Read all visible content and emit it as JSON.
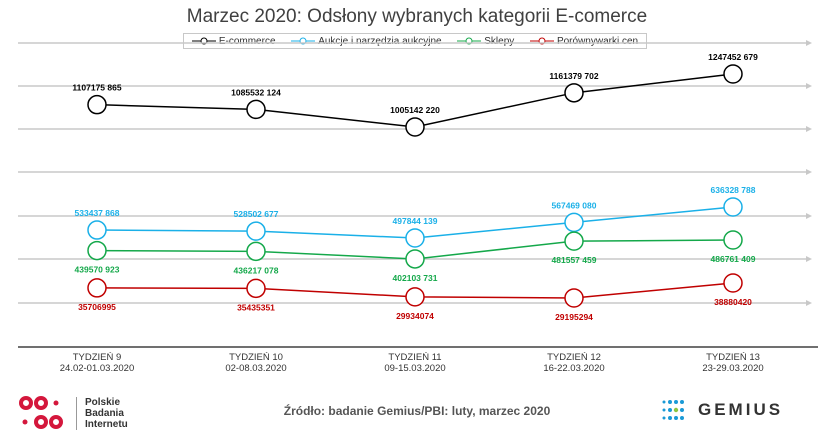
{
  "chart_data": {
    "type": "line",
    "title": "Marzec 2020: Odsłony wybranych kategorii E-comerce",
    "categories": [
      {
        "week": "TYDZIEŃ  9",
        "dates": "24.02-01.03.2020"
      },
      {
        "week": "TYDZIEŃ  10",
        "dates": "02-08.03.2020"
      },
      {
        "week": "TYDZIEŃ  11",
        "dates": "09-15.03.2020"
      },
      {
        "week": "TYDZIEŃ  12",
        "dates": "16-22.03.2020"
      },
      {
        "week": "TYDZIEŃ  13",
        "dates": "23-29.03.2020"
      }
    ],
    "series": [
      {
        "name": "E-commerce",
        "color": "#000000",
        "values": [
          1107175865,
          1085532124,
          1005142220,
          1161379702,
          1247452679
        ],
        "labels": [
          "1107175 865",
          "1085532 124",
          "1005142 220",
          "1161379 702",
          "1247452 679"
        ],
        "label_pos": "above"
      },
      {
        "name": "Aukcje i narzędzia aukcyjne",
        "color": "#1ab0e8",
        "values": [
          533437868,
          528502677,
          497844139,
          567469080,
          636328788
        ],
        "labels": [
          "533437 868",
          "528502 677",
          "497844 139",
          "567469 080",
          "636328 788"
        ],
        "label_pos": "above"
      },
      {
        "name": "Sklepy",
        "color": "#14a84a",
        "values": [
          439570923,
          436217078,
          402103731,
          481557459,
          486761409
        ],
        "labels": [
          "439570 923",
          "436217 078",
          "402103 731",
          "481557 459",
          "486761 409"
        ],
        "label_pos": "below"
      },
      {
        "name": "Porównywarki cen",
        "color": "#c00000",
        "values": [
          35706995,
          35435351,
          29934074,
          29195294,
          38880420
        ],
        "labels": [
          "35706995",
          "35435351",
          "29934074",
          "29195294",
          "38880420"
        ],
        "label_pos": "below"
      }
    ],
    "legend": "top"
  },
  "source": "Źródło: badanie Gemius/PBI: luty, marzec 2020",
  "logos": {
    "pbi": "Polskie Badania Internetu",
    "gemius": "GEMIUS"
  }
}
